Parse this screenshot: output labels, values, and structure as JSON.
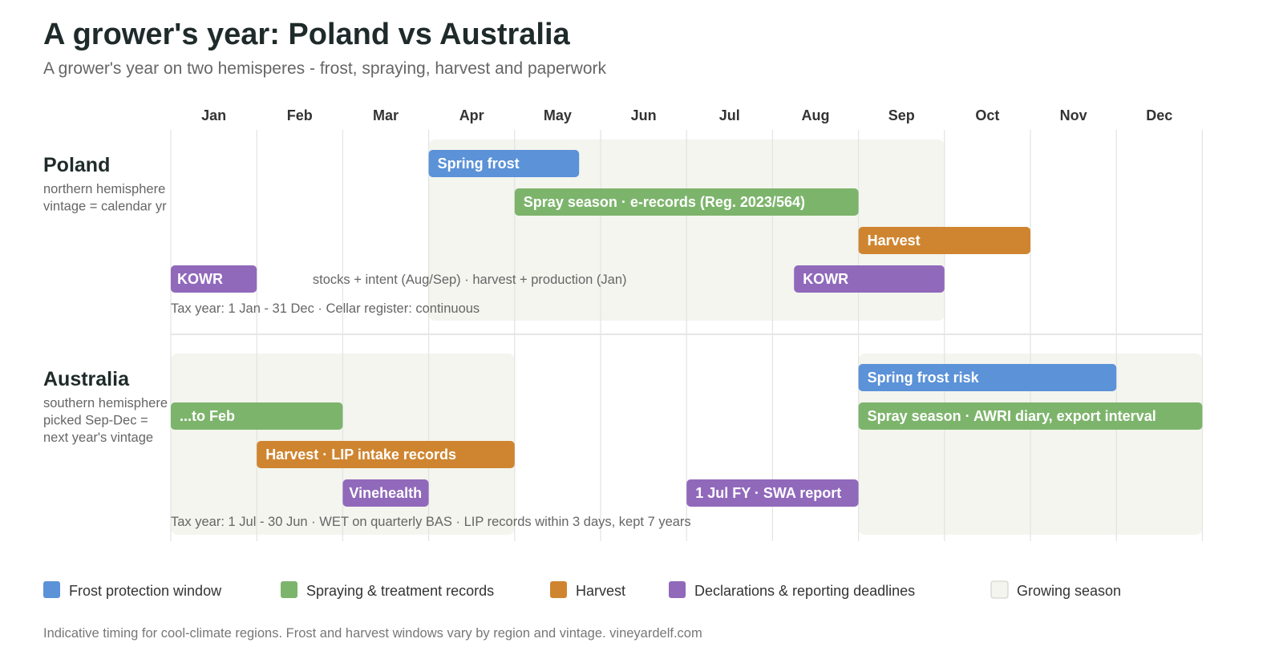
{
  "title": "A grower's year: Poland vs Australia",
  "subtitle": "A grower's year on two hemisperes - frost, spraying, harvest and paperwork",
  "footnote": "Indicative timing for cool-climate regions. Frost and harvest windows vary by region and vintage. vineyardelf.com",
  "colors": {
    "frost": "#5b92d8",
    "spray": "#7db46c",
    "harvest": "#cf8530",
    "declaration": "#9069bb",
    "season": "#f3f5ee"
  },
  "chart_data": {
    "type": "gantt",
    "months": [
      "Jan",
      "Feb",
      "Mar",
      "Apr",
      "May",
      "Jun",
      "Jul",
      "Aug",
      "Sep",
      "Oct",
      "Nov",
      "Dec"
    ],
    "legend": [
      {
        "key": "frost",
        "label": "Frost protection window"
      },
      {
        "key": "spray",
        "label": "Spraying & treatment records"
      },
      {
        "key": "harvest",
        "label": "Harvest"
      },
      {
        "key": "declaration",
        "label": "Declarations & reporting deadlines"
      },
      {
        "key": "season",
        "label": "Growing season"
      }
    ],
    "rows": [
      {
        "id": "poland",
        "name": "Poland",
        "sub": [
          "northern hemisphere",
          "vintage = calendar yr"
        ],
        "season": [
          {
            "start": 4,
            "end": 10
          }
        ],
        "bars": [
          {
            "label": "Spring frost",
            "category": "frost",
            "start": 4,
            "end": 5.75,
            "lane": 0
          },
          {
            "label": "Spray season · e-records (Reg. 2023/564)",
            "category": "spray",
            "start": 5,
            "end": 9,
            "lane": 1
          },
          {
            "label": "Harvest",
            "category": "harvest",
            "start": 9,
            "end": 11,
            "lane": 2
          },
          {
            "label": "KOWR",
            "category": "declaration",
            "start": 1,
            "end": 2,
            "lane": 3
          },
          {
            "label": "KOWR",
            "category": "declaration",
            "start": 8.25,
            "end": 10,
            "lane": 3
          }
        ],
        "inline_note": {
          "text": "stocks + intent (Aug/Sep) · harvest + production (Jan)",
          "at": 2.65,
          "lane": 3
        },
        "note": "Tax year: 1 Jan - 31 Dec · Cellar register: continuous"
      },
      {
        "id": "australia",
        "name": "Australia",
        "sub": [
          "southern hemisphere",
          "picked Sep-Dec =",
          "next year's vintage"
        ],
        "season": [
          {
            "start": 1,
            "end": 5
          },
          {
            "start": 9,
            "end": 13
          }
        ],
        "bars": [
          {
            "label": "Spring frost risk",
            "category": "frost",
            "start": 9,
            "end": 12,
            "lane": 0
          },
          {
            "label": "...to Feb",
            "category": "spray",
            "start": 1,
            "end": 3,
            "lane": 1
          },
          {
            "label": "Spray season · AWRI diary, export interval",
            "category": "spray",
            "start": 9,
            "end": 13,
            "lane": 1
          },
          {
            "label": "Harvest · LIP intake records",
            "category": "harvest",
            "start": 2,
            "end": 5,
            "lane": 2
          },
          {
            "label": "Vinehealth",
            "category": "declaration",
            "start": 3,
            "end": 4,
            "lane": 3
          },
          {
            "label": "1 Jul FY · SWA report",
            "category": "declaration",
            "start": 7,
            "end": 9,
            "lane": 3
          }
        ],
        "note": "Tax year: 1 Jul - 30 Jun · WET on quarterly BAS · LIP records within 3 days, kept 7 years"
      }
    ]
  }
}
